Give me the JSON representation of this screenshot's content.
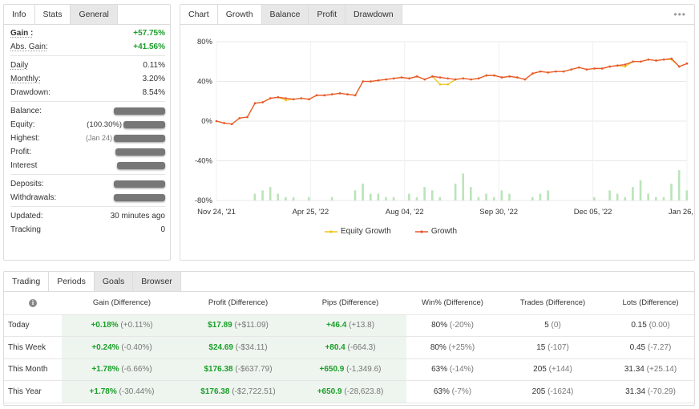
{
  "info": {
    "tabs": [
      "Info",
      "Stats",
      "General"
    ],
    "gain_label": "Gain :",
    "gain_value": "+57.75%",
    "abs_gain_label": "Abs. Gain:",
    "abs_gain_value": "+41.56%",
    "daily_label": "Daily",
    "daily_value": "0.11%",
    "monthly_label": "Monthly:",
    "monthly_value": "3.20%",
    "drawdown_label": "Drawdown:",
    "drawdown_value": "8.54%",
    "balance_label": "Balance:",
    "equity_label": "Equity:",
    "equity_pct": "(100.30%)",
    "highest_label": "Highest:",
    "highest_date": "(Jan 24)",
    "profit_label": "Profit:",
    "interest_label": "Interest",
    "deposits_label": "Deposits:",
    "withdrawals_label": "Withdrawals:",
    "updated_label": "Updated:",
    "updated_value": "30 minutes ago",
    "tracking_label": "Tracking",
    "tracking_value": "0"
  },
  "chart_panel": {
    "tabs": [
      "Chart",
      "Growth",
      "Balance",
      "Profit",
      "Drawdown"
    ],
    "more": "•••",
    "legend": [
      "Equity Growth",
      "Growth"
    ]
  },
  "chart_data": {
    "type": "line",
    "y_ticks": [
      "80%",
      "40%",
      "0%",
      "-40%",
      "-80%"
    ],
    "ylim": [
      -80,
      80
    ],
    "x_ticks": [
      "Nov 24, '21",
      "Apr 25, '22",
      "Aug 04, '22",
      "Sep 30, '22",
      "Dec 05, '22",
      "Jan 26, '23"
    ],
    "grid": true,
    "legend_position": "bottom",
    "colors": {
      "equity": "#f0c419",
      "growth": "#e8552d",
      "volume": "#b9e4b9"
    },
    "series": [
      {
        "name": "Growth",
        "values": [
          0,
          -2,
          -3,
          3,
          4,
          18,
          19,
          23,
          24,
          23,
          22,
          23,
          22,
          26,
          26,
          27,
          28,
          27,
          26,
          40,
          40,
          41,
          42,
          43,
          44,
          43,
          45,
          42,
          45,
          44,
          43,
          42,
          43,
          42,
          43,
          46,
          46,
          44,
          45,
          44,
          42,
          48,
          50,
          49,
          50,
          50,
          52,
          54,
          52,
          53,
          53,
          55,
          56,
          57,
          60,
          60,
          62,
          61,
          62,
          63,
          55,
          58
        ]
      },
      {
        "name": "Equity Growth",
        "values": [
          0,
          -2,
          -3,
          3,
          4,
          18,
          19,
          23,
          24,
          21,
          22,
          23,
          22,
          26,
          26,
          27,
          28,
          27,
          26,
          40,
          40,
          41,
          42,
          43,
          44,
          43,
          45,
          42,
          45,
          37,
          37,
          42,
          43,
          42,
          43,
          46,
          46,
          44,
          45,
          44,
          42,
          48,
          50,
          49,
          50,
          50,
          52,
          54,
          52,
          53,
          53,
          55,
          56,
          55,
          60,
          60,
          62,
          61,
          62,
          62,
          55,
          58
        ]
      }
    ],
    "volume": [
      0,
      0,
      0,
      0,
      0,
      2,
      3,
      4,
      2,
      1,
      1,
      0,
      1,
      0,
      0,
      1,
      0,
      0,
      3,
      5,
      2,
      2,
      1,
      1,
      0,
      2,
      1,
      4,
      3,
      1,
      0,
      5,
      8,
      4,
      1,
      2,
      1,
      3,
      2,
      0,
      0,
      1,
      2,
      3,
      0,
      0,
      0,
      0,
      0,
      1,
      0,
      3,
      2,
      1,
      4,
      6,
      2,
      1,
      1,
      5,
      9,
      3
    ]
  },
  "trading": {
    "tabs": [
      "Trading",
      "Periods",
      "Goals",
      "Browser"
    ],
    "info_icon": "i",
    "headers": [
      "Gain (Difference)",
      "Profit (Difference)",
      "Pips (Difference)",
      "Win% (Difference)",
      "Trades (Difference)",
      "Lots (Difference)"
    ],
    "rows": [
      {
        "period": "Today",
        "gain": "+0.18%",
        "gain_d": "(+0.11%)",
        "profit": "$17.89",
        "profit_d": "(+$11.09)",
        "pips": "+46.4",
        "pips_d": "(+13.8)",
        "win": "80%",
        "win_d": "(-20%)",
        "trades": "5",
        "trades_d": "(0)",
        "lots": "0.15",
        "lots_d": "(0.00)"
      },
      {
        "period": "This Week",
        "gain": "+0.24%",
        "gain_d": "(-0.40%)",
        "profit": "$24.69",
        "profit_d": "(-$34.11)",
        "pips": "+80.4",
        "pips_d": "(-664.3)",
        "win": "80%",
        "win_d": "(+25%)",
        "trades": "15",
        "trades_d": "(-107)",
        "lots": "0.45",
        "lots_d": "(-7.27)"
      },
      {
        "period": "This Month",
        "gain": "+1.78%",
        "gain_d": "(-6.66%)",
        "profit": "$176.38",
        "profit_d": "(-$637.79)",
        "pips": "+650.9",
        "pips_d": "(-1,349.6)",
        "win": "63%",
        "win_d": "(-14%)",
        "trades": "205",
        "trades_d": "(+144)",
        "lots": "31.34",
        "lots_d": "(+25.14)"
      },
      {
        "period": "This Year",
        "gain": "+1.78%",
        "gain_d": "(-30.44%)",
        "profit": "$176.38",
        "profit_d": "(-$2,722.51)",
        "pips": "+650.9",
        "pips_d": "(-28,623.8)",
        "win": "63%",
        "win_d": "(-7%)",
        "trades": "205",
        "trades_d": "(-1624)",
        "lots": "31.34",
        "lots_d": "(-70.29)"
      }
    ]
  }
}
